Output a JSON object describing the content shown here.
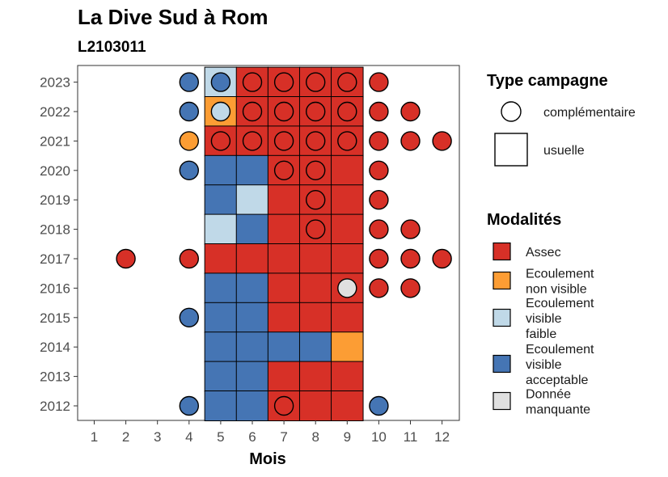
{
  "chart_data": {
    "type": "heatmap",
    "title": "La Dive Sud à Rom",
    "subtitle": "L2103011",
    "xlabel": "Mois",
    "ylabel": "",
    "x": [
      1,
      2,
      3,
      4,
      5,
      6,
      7,
      8,
      9,
      10,
      11,
      12
    ],
    "years": [
      2012,
      2013,
      2014,
      2015,
      2016,
      2017,
      2018,
      2019,
      2020,
      2021,
      2022,
      2023
    ],
    "colors": {
      "Assec": "#d73027",
      "Ecoulement non visible": "#fc9d34",
      "Ecoulement visible faible": "#c0d9e8",
      "Ecoulement visible acceptable": "#4575b4",
      "Donnée manquante": "#e0e0e0"
    },
    "cells": [
      [
        "2023",
        5,
        "Ecoulement visible faible"
      ],
      [
        "2023",
        6,
        "Assec"
      ],
      [
        "2023",
        7,
        "Assec"
      ],
      [
        "2023",
        8,
        "Assec"
      ],
      [
        "2023",
        9,
        "Assec"
      ],
      [
        "2022",
        5,
        "Ecoulement non visible"
      ],
      [
        "2022",
        6,
        "Assec"
      ],
      [
        "2022",
        7,
        "Assec"
      ],
      [
        "2022",
        8,
        "Assec"
      ],
      [
        "2022",
        9,
        "Assec"
      ],
      [
        "2021",
        5,
        "Assec"
      ],
      [
        "2021",
        6,
        "Assec"
      ],
      [
        "2021",
        7,
        "Assec"
      ],
      [
        "2021",
        8,
        "Assec"
      ],
      [
        "2021",
        9,
        "Assec"
      ],
      [
        "2020",
        5,
        "Ecoulement visible acceptable"
      ],
      [
        "2020",
        6,
        "Ecoulement visible acceptable"
      ],
      [
        "2020",
        7,
        "Assec"
      ],
      [
        "2020",
        8,
        "Assec"
      ],
      [
        "2020",
        9,
        "Assec"
      ],
      [
        "2019",
        5,
        "Ecoulement visible acceptable"
      ],
      [
        "2019",
        6,
        "Ecoulement visible faible"
      ],
      [
        "2019",
        7,
        "Assec"
      ],
      [
        "2019",
        8,
        "Assec"
      ],
      [
        "2019",
        9,
        "Assec"
      ],
      [
        "2018",
        5,
        "Ecoulement visible faible"
      ],
      [
        "2018",
        6,
        "Ecoulement visible acceptable"
      ],
      [
        "2018",
        7,
        "Assec"
      ],
      [
        "2018",
        8,
        "Assec"
      ],
      [
        "2018",
        9,
        "Assec"
      ],
      [
        "2017",
        5,
        "Assec"
      ],
      [
        "2017",
        6,
        "Assec"
      ],
      [
        "2017",
        7,
        "Assec"
      ],
      [
        "2017",
        8,
        "Assec"
      ],
      [
        "2017",
        9,
        "Assec"
      ],
      [
        "2016",
        5,
        "Ecoulement visible acceptable"
      ],
      [
        "2016",
        6,
        "Ecoulement visible acceptable"
      ],
      [
        "2016",
        7,
        "Assec"
      ],
      [
        "2016",
        8,
        "Assec"
      ],
      [
        "2016",
        9,
        "Assec"
      ],
      [
        "2015",
        5,
        "Ecoulement visible acceptable"
      ],
      [
        "2015",
        6,
        "Ecoulement visible acceptable"
      ],
      [
        "2015",
        7,
        "Assec"
      ],
      [
        "2015",
        8,
        "Assec"
      ],
      [
        "2015",
        9,
        "Assec"
      ],
      [
        "2014",
        5,
        "Ecoulement visible acceptable"
      ],
      [
        "2014",
        6,
        "Ecoulement visible acceptable"
      ],
      [
        "2014",
        7,
        "Ecoulement visible acceptable"
      ],
      [
        "2014",
        8,
        "Ecoulement visible acceptable"
      ],
      [
        "2014",
        9,
        "Ecoulement non visible"
      ],
      [
        "2013",
        5,
        "Ecoulement visible acceptable"
      ],
      [
        "2013",
        6,
        "Ecoulement visible acceptable"
      ],
      [
        "2013",
        7,
        "Assec"
      ],
      [
        "2013",
        8,
        "Assec"
      ],
      [
        "2013",
        9,
        "Assec"
      ],
      [
        "2012",
        5,
        "Ecoulement visible acceptable"
      ],
      [
        "2012",
        6,
        "Ecoulement visible acceptable"
      ],
      [
        "2012",
        7,
        "Assec"
      ],
      [
        "2012",
        8,
        "Assec"
      ],
      [
        "2012",
        9,
        "Assec"
      ]
    ],
    "points": [
      [
        "2023",
        4,
        "Ecoulement visible acceptable"
      ],
      [
        "2023",
        5,
        "Ecoulement visible acceptable"
      ],
      [
        "2023",
        6,
        "Assec"
      ],
      [
        "2023",
        7,
        "Assec"
      ],
      [
        "2023",
        8,
        "Assec"
      ],
      [
        "2023",
        9,
        "Assec"
      ],
      [
        "2023",
        10,
        "Assec"
      ],
      [
        "2022",
        4,
        "Ecoulement visible acceptable"
      ],
      [
        "2022",
        5,
        "Ecoulement visible faible"
      ],
      [
        "2022",
        6,
        "Assec"
      ],
      [
        "2022",
        7,
        "Assec"
      ],
      [
        "2022",
        8,
        "Assec"
      ],
      [
        "2022",
        9,
        "Assec"
      ],
      [
        "2022",
        10,
        "Assec"
      ],
      [
        "2022",
        11,
        "Assec"
      ],
      [
        "2021",
        4,
        "Ecoulement non visible"
      ],
      [
        "2021",
        5,
        "Assec"
      ],
      [
        "2021",
        6,
        "Assec"
      ],
      [
        "2021",
        7,
        "Assec"
      ],
      [
        "2021",
        8,
        "Assec"
      ],
      [
        "2021",
        9,
        "Assec"
      ],
      [
        "2021",
        10,
        "Assec"
      ],
      [
        "2021",
        11,
        "Assec"
      ],
      [
        "2021",
        12,
        "Assec"
      ],
      [
        "2020",
        4,
        "Ecoulement visible acceptable"
      ],
      [
        "2020",
        7,
        "Assec"
      ],
      [
        "2020",
        8,
        "Assec"
      ],
      [
        "2020",
        10,
        "Assec"
      ],
      [
        "2019",
        8,
        "Assec"
      ],
      [
        "2019",
        10,
        "Assec"
      ],
      [
        "2018",
        8,
        "Assec"
      ],
      [
        "2018",
        10,
        "Assec"
      ],
      [
        "2018",
        11,
        "Assec"
      ],
      [
        "2017",
        2,
        "Assec"
      ],
      [
        "2017",
        4,
        "Assec"
      ],
      [
        "2017",
        10,
        "Assec"
      ],
      [
        "2017",
        11,
        "Assec"
      ],
      [
        "2017",
        12,
        "Assec"
      ],
      [
        "2016",
        9,
        "Donnée manquante"
      ],
      [
        "2016",
        10,
        "Assec"
      ],
      [
        "2016",
        11,
        "Assec"
      ],
      [
        "2015",
        4,
        "Ecoulement visible acceptable"
      ],
      [
        "2012",
        4,
        "Ecoulement visible acceptable"
      ],
      [
        "2012",
        7,
        "Assec"
      ],
      [
        "2012",
        10,
        "Ecoulement visible acceptable"
      ]
    ],
    "legend_type": {
      "title": "Type campagne",
      "items": [
        "complémentaire",
        "usuelle"
      ]
    },
    "legend_modalites": {
      "title": "Modalités",
      "items": [
        {
          "lines": [
            "Assec"
          ],
          "key": "Assec"
        },
        {
          "lines": [
            "Ecoulement",
            "non visible"
          ],
          "key": "Ecoulement non visible"
        },
        {
          "lines": [
            "Ecoulement",
            "visible",
            "faible"
          ],
          "key": "Ecoulement visible faible"
        },
        {
          "lines": [
            "Ecoulement",
            "visible",
            "acceptable"
          ],
          "key": "Ecoulement visible acceptable"
        },
        {
          "lines": [
            "Donnée",
            "manquante"
          ],
          "key": "Donnée manquante"
        }
      ]
    },
    "legend_position": "right",
    "grid": false
  }
}
